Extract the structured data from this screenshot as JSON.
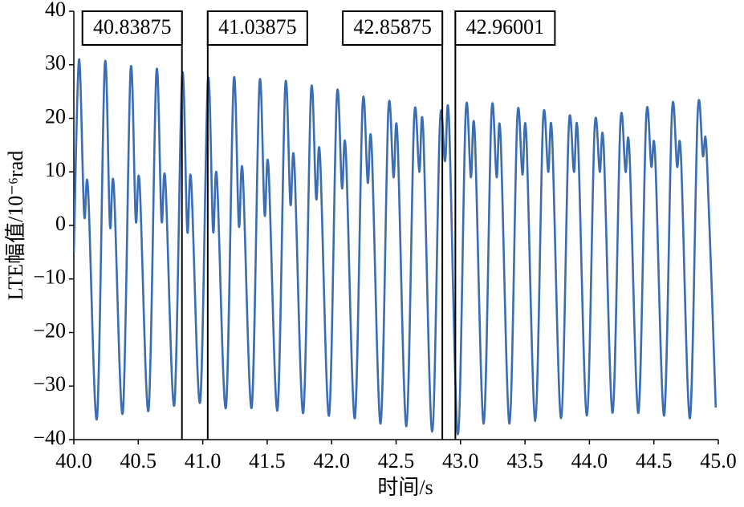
{
  "chart_data": {
    "type": "line",
    "xlabel": "时间/s",
    "ylabel": "LTE幅值/10⁻⁶rad",
    "color": "#3a6db3",
    "x": [
      40.0,
      40.04,
      40.08,
      40.11,
      40.18,
      40.24,
      40.28,
      40.31,
      40.38,
      40.44,
      40.48,
      40.51,
      40.58,
      40.64,
      40.68,
      40.71,
      40.78,
      40.84,
      40.88,
      40.91,
      40.98,
      41.04,
      41.08,
      41.11,
      41.18,
      41.24,
      41.28,
      41.31,
      41.38,
      41.44,
      41.48,
      41.51,
      41.58,
      41.64,
      41.68,
      41.71,
      41.78,
      41.84,
      41.88,
      41.91,
      41.98,
      42.04,
      42.08,
      42.11,
      42.18,
      42.24,
      42.28,
      42.31,
      42.38,
      42.44,
      42.48,
      42.51,
      42.58,
      42.64,
      42.68,
      42.71,
      42.78,
      42.84,
      42.88,
      42.91,
      42.98,
      43.04,
      43.08,
      43.11,
      43.18,
      43.24,
      43.28,
      43.31,
      43.38,
      43.44,
      43.48,
      43.51,
      43.58,
      43.64,
      43.68,
      43.71,
      43.78,
      43.84,
      43.88,
      43.91,
      43.98,
      44.04,
      44.08,
      44.11,
      44.18,
      44.24,
      44.28,
      44.31,
      44.38,
      44.44,
      44.48,
      44.51,
      44.58,
      44.64,
      44.68,
      44.71,
      44.78,
      44.84,
      44.88,
      44.91,
      44.98
    ],
    "values": [
      -5,
      31,
      2,
      7,
      -36,
      30,
      0,
      7.5,
      -35,
      29,
      1,
      8,
      -34.5,
      28.5,
      1,
      8.5,
      -33.5,
      28,
      -1,
      8.5,
      -33,
      27,
      -1,
      9,
      -34,
      27,
      0,
      10,
      -34,
      26.5,
      2,
      11,
      -34.5,
      26,
      4,
      12,
      -35,
      25,
      5,
      13,
      -35.5,
      24,
      7,
      14,
      -36,
      22.5,
      8,
      15,
      -37,
      21.5,
      9,
      17,
      -37.5,
      20,
      10,
      18,
      -38.5,
      19,
      12,
      20,
      -39,
      21,
      9,
      17.5,
      -37,
      21,
      9,
      17,
      -37,
      20,
      9.5,
      17,
      -36.5,
      19.5,
      10,
      17,
      -36,
      18.5,
      10,
      17,
      -35.5,
      18,
      10,
      15,
      -35,
      19,
      10,
      14,
      -35,
      20,
      11,
      13,
      -35.5,
      21,
      11,
      13,
      -36,
      21,
      13,
      13.5,
      -34
    ],
    "vlines": [
      40.83875,
      41.03875,
      42.85875,
      42.96001
    ],
    "xlim": [
      40,
      45
    ],
    "xticks": [
      {
        "value": 40,
        "label": "40.0"
      },
      {
        "value": 40.5,
        "label": "40.5"
      },
      {
        "value": 41,
        "label": "41.0"
      },
      {
        "value": 41.5,
        "label": "41.5"
      },
      {
        "value": 42,
        "label": "42.0"
      },
      {
        "value": 42.5,
        "label": "42.5"
      },
      {
        "value": 43,
        "label": "43.0"
      },
      {
        "value": 43.5,
        "label": "43.5"
      },
      {
        "value": 44,
        "label": "44.0"
      },
      {
        "value": 44.5,
        "label": "44.5"
      },
      {
        "value": 45,
        "label": "45.0"
      }
    ],
    "ylim": [
      -40,
      40
    ],
    "yticks": [
      {
        "value": -40,
        "label": "−40"
      },
      {
        "value": -30,
        "label": "−30"
      },
      {
        "value": -20,
        "label": "−20"
      },
      {
        "value": -10,
        "label": "−10"
      },
      0,
      10,
      20,
      30,
      40
    ]
  }
}
